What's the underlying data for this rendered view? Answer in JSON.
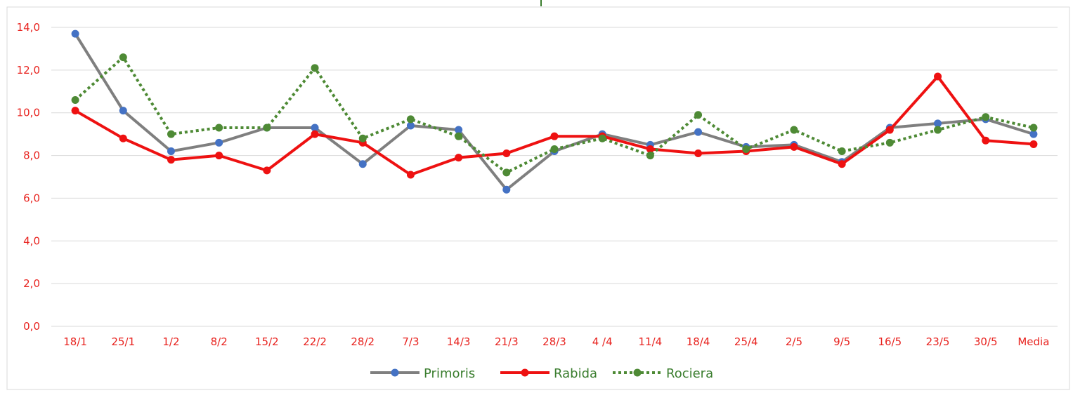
{
  "chart_data": {
    "type": "line",
    "title": "",
    "xlabel": "",
    "ylabel": "",
    "ylim": [
      0,
      14
    ],
    "yticks": [
      0,
      2,
      4,
      6,
      8,
      10,
      12,
      14
    ],
    "ytick_labels": [
      "0,0",
      "2,0",
      "4,0",
      "6,0",
      "8,0",
      "10,0",
      "12,0",
      "14,0"
    ],
    "grid": true,
    "legend_position": "bottom",
    "categories": [
      "18/1",
      "25/1",
      "1/2",
      "8/2",
      "15/2",
      "22/2",
      "28/2",
      "7/3",
      "14/3",
      "21/3",
      "28/3",
      "4 /4",
      "11/4",
      "18/4",
      "25/4",
      "2/5",
      "9/5",
      "16/5",
      "23/5",
      "30/5",
      "Media"
    ],
    "series": [
      {
        "name": "Primoris",
        "line_color": "#7f7f7f",
        "marker_color": "#4472c4",
        "label_color": "#3a7d2e",
        "dash": "solid",
        "values": [
          13.7,
          10.1,
          8.2,
          8.6,
          9.3,
          9.3,
          7.6,
          9.4,
          9.2,
          6.4,
          8.2,
          9.0,
          8.5,
          9.1,
          8.4,
          8.5,
          7.7,
          9.3,
          9.5,
          9.7,
          9.0
        ]
      },
      {
        "name": "Rabida",
        "line_color": "#ee1111",
        "marker_color": "#ee1111",
        "label_color": "#3a7d2e",
        "dash": "solid",
        "values": [
          10.1,
          8.8,
          7.8,
          8.0,
          7.3,
          9.0,
          8.6,
          7.1,
          7.9,
          8.1,
          8.9,
          8.9,
          8.3,
          8.1,
          8.2,
          8.4,
          7.6,
          9.2,
          11.7,
          8.7,
          8.53
        ]
      },
      {
        "name": "Rociera",
        "line_color": "#4e8a35",
        "marker_color": "#4e8a35",
        "label_color": "#3a7d2e",
        "dash": "dotted",
        "values": [
          10.6,
          12.6,
          9.0,
          9.3,
          9.3,
          12.1,
          8.8,
          9.7,
          8.9,
          7.2,
          8.3,
          8.8,
          8.0,
          9.9,
          8.3,
          9.2,
          8.2,
          8.6,
          9.2,
          9.8,
          9.3
        ]
      }
    ]
  }
}
